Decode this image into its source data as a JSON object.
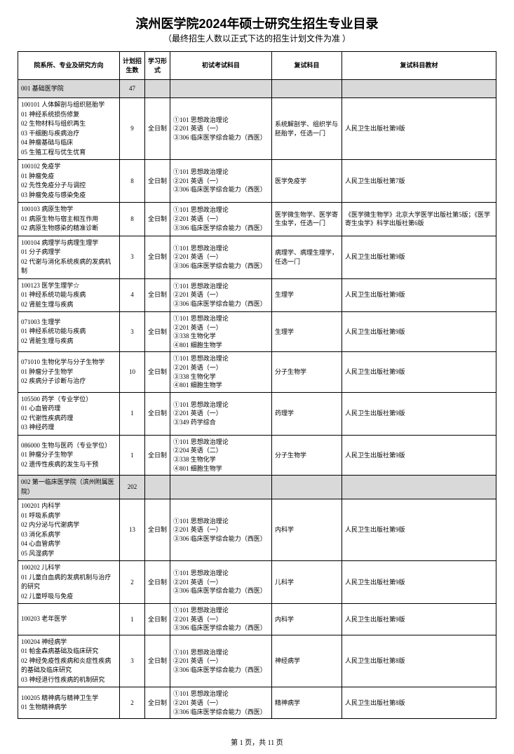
{
  "title": "滨州医学院2024年硕士研究生招生专业目录",
  "subtitle": "（最终招生人数以正式下达的招生计划文件为准 ）",
  "headers": {
    "major": "院系所、专业及研究方向",
    "plan": "计划招生数",
    "form": "学习形式",
    "initial": "初试考试科目",
    "retest": "复试科目",
    "material": "复试科目教材"
  },
  "sections": [
    {
      "label": "001 基础医学院",
      "plan": "47",
      "rows": [
        {
          "major": "100101 人体解剖与组织胚胎学\n01 神经系统损伤修复\n02 生物材料与组织再生\n03 干细胞与疾病治疗\n04 肿瘤基础与临床\n05 生殖工程与优生优育",
          "plan": "9",
          "form": "全日制",
          "initial": "①101 思想政治理论\n②201 英语（一）\n③306 临床医学综合能力（西医）",
          "retest": "系统解剖学、组织学与胚胎学，任选一门",
          "material": "人民卫生出版社第9版"
        },
        {
          "major": "100102 免疫学\n01 肿瘤免疫\n02 先性免疫分子与调控\n03 肿瘤免疫与感染免疫",
          "plan": "8",
          "form": "全日制",
          "initial": "①101 思想政治理论\n②201 英语（一）\n③306 临床医学综合能力（西医）",
          "retest": "医学免疫学",
          "material": "人民卫生出版社第7版"
        },
        {
          "major": "100103 病原生物学\n01 病原生物与宿主相互作用\n02 病原生物感染的精准诊断",
          "plan": "8",
          "form": "全日制",
          "initial": "①101 思想政治理论\n②201 英语（一）\n③306 临床医学综合能力（西医）",
          "retest": "医学微生物学、医学寄生虫学，任选一门",
          "material": "《医学微生物学》北京大学医学出版社第5版；《医学寄生虫学》科学出版社第6版"
        },
        {
          "major": "100104 病理学与病理生理学\n01 分子病理学\n02 代谢与消化系统疾病的发病机制",
          "plan": "3",
          "form": "全日制",
          "initial": "①101 思想政治理论\n②201 英语（一）\n③306 临床医学综合能力（西医）",
          "retest": "病理学、病理生理学，任选一门",
          "material": "人民卫生出版社第9版"
        },
        {
          "major": "100123 医学生理学☆\n01 神经系统功能与疾病\n02 肾脏生理与疾病",
          "plan": "4",
          "form": "全日制",
          "initial": "①101 思想政治理论\n②201 英语（一）\n③306 临床医学综合能力（西医）",
          "retest": "生理学",
          "material": "人民卫生出版社第9版"
        },
        {
          "major": "071003 生理学\n01 神经系统功能与疾病\n02 肾脏生理与疾病",
          "plan": "3",
          "form": "全日制",
          "initial": "①101 思想政治理论\n②201 英语（一）\n③338 生物化学\n④801 细胞生物学",
          "retest": "生理学",
          "material": "人民卫生出版社第9版"
        },
        {
          "major": "071010 生物化学与分子生物学\n01 肿瘤分子生物学\n02 疾病分子诊断与治疗",
          "plan": "10",
          "form": "全日制",
          "initial": "①101 思想政治理论\n②201 英语（一）\n③338 生物化学\n④801 细胞生物学",
          "retest": "分子生物学",
          "material": "人民卫生出版社第9版"
        },
        {
          "major": "105500 药学（专业学位）\n01 心血管药理\n02 代谢性疾病药理\n03 神经药理",
          "plan": "1",
          "form": "全日制",
          "initial": "①101 思想政治理论\n②201 英语（一）\n③349 药学综合",
          "retest": "药理学",
          "material": "人民卫生出版社第9版"
        },
        {
          "major": "086000 生物与医药（专业学位）\n01 肿瘤分子生物学\n02 遗传性疾病的发生与干预",
          "plan": "1",
          "form": "全日制",
          "initial": "①101 思想政治理论\n②204 英语（二）\n③338 生物化学\n④801 细胞生物学",
          "retest": "分子生物学",
          "material": "人民卫生出版社第9版"
        }
      ]
    },
    {
      "label": "002 第一临床医学院（滨州附属医院）",
      "plan": "202",
      "rows": [
        {
          "major": "100201 内科学\n01 呼吸系病学\n02 内分泌与代谢病学\n03 消化系病学\n04 心血管病学\n05 风湿病学",
          "plan": "13",
          "form": "全日制",
          "initial": "①101 思想政治理论\n②201 英语（一）\n③306 临床医学综合能力（西医）",
          "retest": "内科学",
          "material": "人民卫生出版社第9版"
        },
        {
          "major": "100202 儿科学\n01 儿童白血病的发病机制与治疗的研究\n02 儿童呼吸与免疫",
          "plan": "2",
          "form": "全日制",
          "initial": "①101 思想政治理论\n②201 英语（一）\n③306 临床医学综合能力（西医）",
          "retest": "儿科学",
          "material": "人民卫生出版社第9版"
        },
        {
          "major": "100203 老年医学",
          "plan": "1",
          "form": "全日制",
          "initial": "①101 思想政治理论\n②201 英语（一）\n③306 临床医学综合能力（西医）",
          "retest": "内科学",
          "material": "人民卫生出版社第9版"
        },
        {
          "major": "100204 神经病学\n01 帕金森病基础及临床研究\n02 神经免疫性疾病和炎症性疾病的基础及临床研究\n03 神经退行性疾病的机制研究",
          "plan": "3",
          "form": "全日制",
          "initial": "①101 思想政治理论\n②201 英语（一）\n③306 临床医学综合能力（西医）",
          "retest": "神经病学",
          "material": "人民卫生出版社第8版"
        },
        {
          "major": "100205 精神病与精神卫生学\n01 生物精神病学",
          "plan": "2",
          "form": "全日制",
          "initial": "①101 思想政治理论\n②201 英语（一）\n③306 临床医学综合能力（西医）",
          "retest": "精神病学",
          "material": "人民卫生出版社第8版"
        }
      ]
    }
  ],
  "footer": "第 1 页，共 11 页"
}
